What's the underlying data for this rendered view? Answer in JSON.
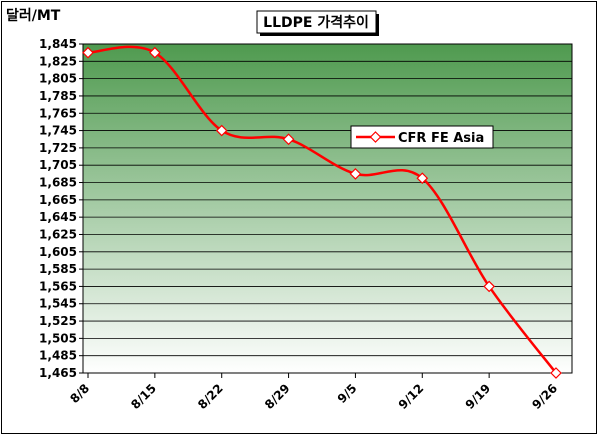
{
  "chart_data": {
    "type": "line",
    "title": "LLDPE 가격추이",
    "ylabel": "달러/MT",
    "xlabel": "",
    "ylim": [
      1465,
      1845
    ],
    "yticks": [
      1465,
      1485,
      1505,
      1525,
      1545,
      1565,
      1585,
      1605,
      1625,
      1645,
      1665,
      1685,
      1705,
      1725,
      1745,
      1765,
      1785,
      1805,
      1825,
      1845
    ],
    "ytick_labels": [
      "1,465",
      "1,485",
      "1,505",
      "1,525",
      "1,545",
      "1,565",
      "1,585",
      "1,605",
      "1,625",
      "1,645",
      "1,665",
      "1,685",
      "1,705",
      "1,725",
      "1,745",
      "1,765",
      "1,785",
      "1,805",
      "1,825",
      "1,845"
    ],
    "categories": [
      "8/8",
      "8/15",
      "8/22",
      "8/29",
      "9/5",
      "9/12",
      "9/19",
      "9/26"
    ],
    "series": [
      {
        "name": "CFR FE Asia",
        "x": [
          "8/8",
          "8/15",
          "8/22",
          "8/29",
          "9/5",
          "9/12",
          "9/19",
          "9/26"
        ],
        "values": [
          1835,
          1835,
          1745,
          1735,
          1695,
          1690,
          1565,
          1465
        ]
      }
    ],
    "grid": true,
    "legend_position": "upper-right",
    "colors": {
      "line": "#ff0000",
      "marker_fill": "#ffffff",
      "plot_top": "#4f9a4f",
      "plot_bottom": "#ffffff"
    }
  }
}
